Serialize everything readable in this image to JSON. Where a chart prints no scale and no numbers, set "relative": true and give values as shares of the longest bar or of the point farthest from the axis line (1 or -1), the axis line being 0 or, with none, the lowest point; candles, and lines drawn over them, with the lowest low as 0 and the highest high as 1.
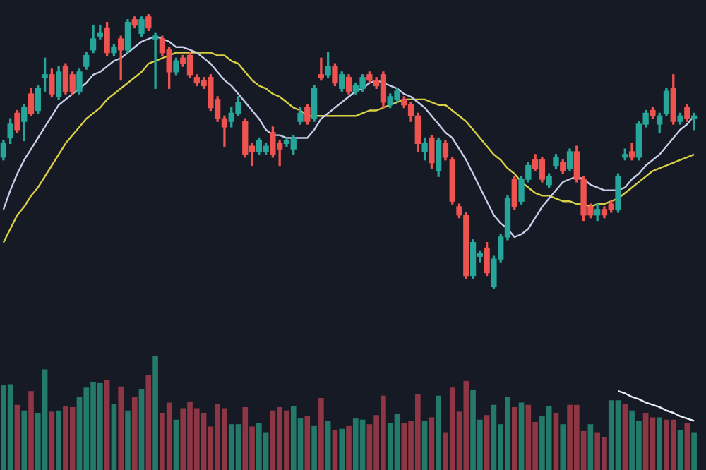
{
  "chart_data": [
    {
      "type": "candlestick",
      "relative": true,
      "tick_labels": false,
      "categories": [
        null,
        null,
        null,
        null,
        null,
        null,
        null,
        null,
        null,
        null,
        null,
        null,
        null,
        null,
        null,
        null,
        null,
        null,
        null,
        null,
        null,
        null,
        null,
        null,
        null,
        null,
        null,
        null,
        null,
        null,
        null,
        null,
        null,
        null,
        null,
        null,
        null,
        null,
        null,
        null,
        null,
        null,
        null,
        null,
        null,
        null,
        null,
        null,
        null,
        null,
        null,
        null,
        null,
        null,
        null,
        null,
        null,
        null,
        null,
        null,
        null,
        null,
        null,
        null,
        null,
        null,
        null,
        null,
        null,
        null,
        null,
        null,
        null,
        null,
        null,
        null,
        null,
        null,
        null,
        null,
        null,
        null,
        null,
        null,
        null,
        null,
        null,
        null,
        null,
        null,
        null,
        null,
        null,
        null,
        null,
        null,
        null,
        null,
        null,
        null,
        null
      ],
      "ohlc": [
        [
          0.48,
          0.54,
          0.47,
          0.53
        ],
        [
          0.55,
          0.62,
          0.53,
          0.6
        ],
        [
          0.64,
          0.65,
          0.57,
          0.58
        ],
        [
          0.61,
          0.67,
          0.54,
          0.66
        ],
        [
          0.71,
          0.73,
          0.63,
          0.64
        ],
        [
          0.65,
          0.74,
          0.64,
          0.73
        ],
        [
          0.77,
          0.84,
          0.72,
          0.78
        ],
        [
          0.78,
          0.8,
          0.7,
          0.71
        ],
        [
          0.7,
          0.81,
          0.69,
          0.79
        ],
        [
          0.81,
          0.82,
          0.71,
          0.72
        ],
        [
          0.78,
          0.79,
          0.71,
          0.72
        ],
        [
          0.72,
          0.8,
          0.71,
          0.79
        ],
        [
          0.81,
          0.86,
          0.8,
          0.85
        ],
        [
          0.87,
          0.96,
          0.86,
          0.91
        ],
        [
          0.92,
          0.96,
          0.91,
          0.93
        ],
        [
          0.95,
          0.97,
          0.85,
          0.86
        ],
        [
          0.86,
          0.89,
          0.85,
          0.88
        ],
        [
          0.91,
          0.92,
          0.76,
          0.87
        ],
        [
          0.87,
          0.98,
          0.86,
          0.97
        ],
        [
          0.98,
          0.99,
          0.95,
          0.96
        ],
        [
          0.93,
          0.99,
          0.92,
          0.98
        ],
        [
          0.99,
          1.0,
          0.94,
          0.95
        ],
        [
          0.91,
          0.93,
          0.73,
          0.92
        ],
        [
          0.91,
          0.92,
          0.85,
          0.86
        ],
        [
          0.87,
          0.88,
          0.73,
          0.79
        ],
        [
          0.79,
          0.84,
          0.78,
          0.83
        ],
        [
          0.84,
          0.85,
          0.81,
          0.82
        ],
        [
          0.85,
          0.86,
          0.77,
          0.78
        ],
        [
          0.77,
          0.78,
          0.74,
          0.75
        ],
        [
          0.76,
          0.77,
          0.73,
          0.74
        ],
        [
          0.77,
          0.78,
          0.65,
          0.66
        ],
        [
          0.69,
          0.7,
          0.61,
          0.62
        ],
        [
          0.62,
          0.63,
          0.52,
          0.59
        ],
        [
          0.61,
          0.66,
          0.59,
          0.64
        ],
        [
          0.64,
          0.7,
          0.63,
          0.68
        ],
        [
          0.61,
          0.62,
          0.48,
          0.49
        ],
        [
          0.52,
          0.53,
          0.45,
          0.5
        ],
        [
          0.5,
          0.55,
          0.49,
          0.54
        ],
        [
          0.5,
          0.53,
          0.49,
          0.52
        ],
        [
          0.57,
          0.59,
          0.48,
          0.49
        ],
        [
          0.53,
          0.54,
          0.45,
          0.51
        ],
        [
          0.53,
          0.55,
          0.52,
          0.54
        ],
        [
          0.51,
          0.56,
          0.49,
          0.55
        ],
        [
          0.61,
          0.66,
          0.6,
          0.64
        ],
        [
          0.66,
          0.67,
          0.6,
          0.61
        ],
        [
          0.62,
          0.74,
          0.61,
          0.73
        ],
        [
          0.78,
          0.84,
          0.76,
          0.77
        ],
        [
          0.78,
          0.86,
          0.77,
          0.81
        ],
        [
          0.81,
          0.82,
          0.74,
          0.75
        ],
        [
          0.73,
          0.79,
          0.72,
          0.78
        ],
        [
          0.77,
          0.78,
          0.71,
          0.72
        ],
        [
          0.72,
          0.75,
          0.71,
          0.74
        ],
        [
          0.73,
          0.78,
          0.72,
          0.77
        ],
        [
          0.78,
          0.79,
          0.75,
          0.76
        ],
        [
          0.76,
          0.77,
          0.73,
          0.74
        ],
        [
          0.78,
          0.79,
          0.66,
          0.68
        ],
        [
          0.67,
          0.71,
          0.66,
          0.7
        ],
        [
          0.69,
          0.73,
          0.68,
          0.72
        ],
        [
          0.69,
          0.7,
          0.66,
          0.67
        ],
        [
          0.67,
          0.68,
          0.61,
          0.63
        ],
        [
          0.63,
          0.64,
          0.5,
          0.53
        ],
        [
          0.5,
          0.55,
          0.47,
          0.53
        ],
        [
          0.55,
          0.56,
          0.44,
          0.46
        ],
        [
          0.43,
          0.55,
          0.41,
          0.54
        ],
        [
          0.53,
          0.54,
          0.47,
          0.48
        ],
        [
          0.47,
          0.48,
          0.31,
          0.32
        ],
        [
          0.3,
          0.31,
          0.26,
          0.27
        ],
        [
          0.27,
          0.28,
          0.04,
          0.05
        ],
        [
          0.05,
          0.18,
          0.04,
          0.17
        ],
        [
          0.12,
          0.14,
          0.1,
          0.13
        ],
        [
          0.15,
          0.17,
          0.05,
          0.06
        ],
        [
          0.01,
          0.12,
          0.0,
          0.11
        ],
        [
          0.11,
          0.2,
          0.1,
          0.19
        ],
        [
          0.19,
          0.34,
          0.18,
          0.33
        ],
        [
          0.4,
          0.41,
          0.29,
          0.3
        ],
        [
          0.32,
          0.41,
          0.31,
          0.4
        ],
        [
          0.4,
          0.46,
          0.39,
          0.45
        ],
        [
          0.47,
          0.49,
          0.43,
          0.44
        ],
        [
          0.47,
          0.48,
          0.39,
          0.4
        ],
        [
          0.38,
          0.42,
          0.37,
          0.41
        ],
        [
          0.45,
          0.49,
          0.44,
          0.48
        ],
        [
          0.46,
          0.47,
          0.42,
          0.43
        ],
        [
          0.44,
          0.51,
          0.43,
          0.5
        ],
        [
          0.5,
          0.52,
          0.39,
          0.4
        ],
        [
          0.4,
          0.41,
          0.25,
          0.27
        ],
        [
          0.3,
          0.31,
          0.26,
          0.27
        ],
        [
          0.27,
          0.31,
          0.25,
          0.29
        ],
        [
          0.29,
          0.3,
          0.26,
          0.27
        ],
        [
          0.31,
          0.32,
          0.28,
          0.29
        ],
        [
          0.29,
          0.42,
          0.28,
          0.41
        ],
        [
          0.48,
          0.51,
          0.47,
          0.49
        ],
        [
          0.5,
          0.53,
          0.47,
          0.48
        ],
        [
          0.48,
          0.61,
          0.47,
          0.6
        ],
        [
          0.6,
          0.65,
          0.59,
          0.64
        ],
        [
          0.65,
          0.66,
          0.62,
          0.63
        ],
        [
          0.6,
          0.64,
          0.57,
          0.63
        ],
        [
          0.64,
          0.73,
          0.63,
          0.72
        ],
        [
          0.73,
          0.78,
          0.6,
          0.61
        ],
        [
          0.61,
          0.64,
          0.6,
          0.63
        ],
        [
          0.66,
          0.67,
          0.61,
          0.62
        ],
        [
          0.62,
          0.64,
          0.58,
          0.63
        ]
      ],
      "colors": [
        "#26a69a",
        "#26a69a",
        "#ef5350",
        "#26a69a",
        "#ef5350",
        "#26a69a",
        "#26a69a",
        "#ef5350",
        "#26a69a",
        "#ef5350",
        "#ef5350",
        "#26a69a",
        "#26a69a",
        "#26a69a",
        "#26a69a",
        "#ef5350",
        "#26a69a",
        "#ef5350",
        "#26a69a",
        "#ef5350",
        "#26a69a",
        "#ef5350",
        "#26a69a",
        "#ef5350",
        "#ef5350",
        "#26a69a",
        "#ef5350",
        "#ef5350",
        "#ef5350",
        "#ef5350",
        "#ef5350",
        "#ef5350",
        "#ef5350",
        "#26a69a",
        "#26a69a",
        "#ef5350",
        "#ef5350",
        "#26a69a",
        "#26a69a",
        "#ef5350",
        "#ef5350",
        "#26a69a",
        "#26a69a",
        "#26a69a",
        "#ef5350",
        "#26a69a",
        "#ef5350",
        "#26a69a",
        "#ef5350",
        "#26a69a",
        "#ef5350",
        "#26a69a",
        "#26a69a",
        "#ef5350",
        "#ef5350",
        "#ef5350",
        "#26a69a",
        "#26a69a",
        "#ef5350",
        "#ef5350",
        "#ef5350",
        "#26a69a",
        "#ef5350",
        "#26a69a",
        "#ef5350",
        "#ef5350",
        "#ef5350",
        "#ef5350",
        "#26a69a",
        "#26a69a",
        "#ef5350",
        "#26a69a",
        "#26a69a",
        "#26a69a",
        "#ef5350",
        "#26a69a",
        "#26a69a",
        "#ef5350",
        "#ef5350",
        "#26a69a",
        "#26a69a",
        "#ef5350",
        "#26a69a",
        "#ef5350",
        "#ef5350",
        "#ef5350",
        "#26a69a",
        "#ef5350",
        "#ef5350",
        "#26a69a",
        "#26a69a",
        "#ef5350",
        "#26a69a",
        "#26a69a",
        "#ef5350",
        "#26a69a",
        "#26a69a",
        "#ef5350",
        "#26a69a",
        "#ef5350",
        "#26a69a"
      ],
      "series": [
        {
          "type": "line",
          "color": "#c5cde8",
          "values": [
            0.29,
            0.36,
            0.42,
            0.47,
            0.51,
            0.55,
            0.59,
            0.63,
            0.67,
            0.69,
            0.71,
            0.73,
            0.75,
            0.78,
            0.79,
            0.81,
            0.83,
            0.84,
            0.86,
            0.88,
            0.9,
            0.91,
            0.92,
            0.91,
            0.9,
            0.88,
            0.88,
            0.87,
            0.86,
            0.84,
            0.82,
            0.79,
            0.76,
            0.74,
            0.71,
            0.68,
            0.65,
            0.62,
            0.58,
            0.56,
            0.56,
            0.55,
            0.55,
            0.55,
            0.55,
            0.58,
            0.62,
            0.64,
            0.66,
            0.68,
            0.7,
            0.72,
            0.73,
            0.75,
            0.76,
            0.75,
            0.74,
            0.73,
            0.71,
            0.7,
            0.68,
            0.66,
            0.63,
            0.6,
            0.57,
            0.55,
            0.51,
            0.47,
            0.42,
            0.37,
            0.32,
            0.27,
            0.24,
            0.22,
            0.19,
            0.2,
            0.22,
            0.26,
            0.3,
            0.33,
            0.36,
            0.39,
            0.4,
            0.41,
            0.4,
            0.38,
            0.37,
            0.36,
            0.36,
            0.36,
            0.37,
            0.4,
            0.42,
            0.45,
            0.47,
            0.49,
            0.52,
            0.55,
            0.58,
            0.6,
            0.63
          ]
        },
        {
          "type": "line",
          "color": "#d9cf45",
          "values": [
            0.17,
            0.22,
            0.27,
            0.3,
            0.34,
            0.37,
            0.41,
            0.45,
            0.49,
            0.53,
            0.56,
            0.59,
            0.62,
            0.64,
            0.66,
            0.69,
            0.71,
            0.73,
            0.75,
            0.77,
            0.79,
            0.82,
            0.83,
            0.84,
            0.85,
            0.86,
            0.86,
            0.86,
            0.86,
            0.86,
            0.86,
            0.85,
            0.85,
            0.83,
            0.82,
            0.79,
            0.76,
            0.74,
            0.73,
            0.71,
            0.7,
            0.68,
            0.66,
            0.65,
            0.63,
            0.63,
            0.63,
            0.63,
            0.63,
            0.63,
            0.63,
            0.63,
            0.64,
            0.65,
            0.65,
            0.66,
            0.67,
            0.68,
            0.69,
            0.69,
            0.69,
            0.69,
            0.68,
            0.67,
            0.67,
            0.65,
            0.63,
            0.61,
            0.58,
            0.55,
            0.52,
            0.49,
            0.47,
            0.44,
            0.42,
            0.39,
            0.37,
            0.35,
            0.34,
            0.34,
            0.33,
            0.32,
            0.32,
            0.31,
            0.31,
            0.3,
            0.31,
            0.31,
            0.32,
            0.33,
            0.35,
            0.37,
            0.39,
            0.41,
            0.43,
            0.44,
            0.45,
            0.46,
            0.47,
            0.48,
            0.49
          ]
        }
      ]
    },
    {
      "type": "bar",
      "relative": true,
      "tick_labels": false,
      "categories": [
        null,
        null,
        null,
        null,
        null,
        null,
        null,
        null,
        null,
        null,
        null,
        null,
        null,
        null,
        null,
        null,
        null,
        null,
        null,
        null,
        null,
        null,
        null,
        null,
        null,
        null,
        null,
        null,
        null,
        null,
        null,
        null,
        null,
        null,
        null,
        null,
        null,
        null,
        null,
        null,
        null,
        null,
        null,
        null,
        null,
        null,
        null,
        null,
        null,
        null,
        null,
        null,
        null,
        null,
        null,
        null,
        null,
        null,
        null,
        null,
        null,
        null,
        null,
        null,
        null,
        null,
        null,
        null,
        null,
        null,
        null,
        null,
        null,
        null,
        null,
        null,
        null,
        null,
        null,
        null,
        null,
        null,
        null,
        null,
        null,
        null,
        null,
        null,
        null,
        null,
        null,
        null,
        null,
        null,
        null,
        null,
        null,
        null,
        null,
        null,
        null
      ],
      "series": [
        {
          "colors": [
            "#237a69",
            "#237a69",
            "#8e3644",
            "#237a69",
            "#8e3644",
            "#237a69",
            "#237a69",
            "#8e3644",
            "#237a69",
            "#8e3644",
            "#8e3644",
            "#237a69",
            "#237a69",
            "#237a69",
            "#237a69",
            "#8e3644",
            "#237a69",
            "#8e3644",
            "#237a69",
            "#8e3644",
            "#237a69",
            "#8e3644",
            "#237a69",
            "#8e3644",
            "#8e3644",
            "#237a69",
            "#8e3644",
            "#8e3644",
            "#8e3644",
            "#8e3644",
            "#8e3644",
            "#8e3644",
            "#8e3644",
            "#237a69",
            "#237a69",
            "#8e3644",
            "#8e3644",
            "#237a69",
            "#237a69",
            "#8e3644",
            "#8e3644",
            "#8e3644",
            "#237a69",
            "#237a69",
            "#8e3644",
            "#237a69",
            "#8e3644",
            "#237a69",
            "#8e3644",
            "#237a69",
            "#8e3644",
            "#237a69",
            "#237a69",
            "#8e3644",
            "#8e3644",
            "#8e3644",
            "#237a69",
            "#237a69",
            "#8e3644",
            "#8e3644",
            "#8e3644",
            "#237a69",
            "#8e3644",
            "#237a69",
            "#8e3644",
            "#8e3644",
            "#8e3644",
            "#8e3644",
            "#237a69",
            "#237a69",
            "#8e3644",
            "#237a69",
            "#237a69",
            "#237a69",
            "#8e3644",
            "#237a69",
            "#8e3644",
            "#8e3644",
            "#237a69",
            "#237a69",
            "#8e3644",
            "#237a69",
            "#8e3644",
            "#8e3644",
            "#8e3644",
            "#237a69",
            "#8e3644",
            "#8e3644",
            "#237a69",
            "#237a69",
            "#8e3644",
            "#237a69",
            "#237a69",
            "#8e3644",
            "#8e3644",
            "#237a69",
            "#8e3644",
            "#8e3644",
            "#237a69",
            "#8e3644",
            "#237a69"
          ],
          "values": [
            0.74,
            0.75,
            0.57,
            0.52,
            0.69,
            0.5,
            0.88,
            0.51,
            0.52,
            0.56,
            0.55,
            0.64,
            0.72,
            0.77,
            0.76,
            0.79,
            0.58,
            0.73,
            0.52,
            0.64,
            0.71,
            0.83,
            1,
            0.5,
            0.59,
            0.44,
            0.54,
            0.6,
            0.54,
            0.5,
            0.38,
            0.58,
            0.54,
            0.4,
            0.4,
            0.55,
            0.38,
            0.41,
            0.33,
            0.52,
            0.55,
            0.52,
            0.56,
            0.45,
            0.47,
            0.39,
            0.63,
            0.43,
            0.35,
            0.36,
            0.39,
            0.45,
            0.44,
            0.4,
            0.48,
            0.65,
            0.41,
            0.49,
            0.41,
            0.43,
            0.66,
            0.43,
            0.46,
            0.65,
            0.33,
            0.72,
            0.51,
            0.78,
            0.7,
            0.44,
            0.48,
            0.57,
            0.4,
            0.64,
            0.55,
            0.59,
            0.57,
            0.42,
            0.47,
            0.56,
            0.5,
            0.4,
            0.57,
            0.57,
            0.34,
            0.4,
            0.33,
            0.29,
            0.61,
            0.61,
            0.58,
            0.52,
            0.43,
            0.5,
            0.46,
            0.46,
            0.44,
            0.44,
            0.35,
            0.41,
            0.33
          ]
        },
        {
          "type": "line",
          "color": "#e8ecf4",
          "values": [
            null,
            null,
            null,
            null,
            null,
            null,
            null,
            null,
            null,
            null,
            null,
            null,
            null,
            null,
            null,
            null,
            null,
            null,
            null,
            null,
            null,
            null,
            null,
            null,
            null,
            null,
            null,
            null,
            null,
            null,
            null,
            null,
            null,
            null,
            null,
            null,
            null,
            null,
            null,
            null,
            null,
            null,
            null,
            null,
            null,
            null,
            null,
            null,
            null,
            null,
            null,
            null,
            null,
            null,
            null,
            null,
            null,
            null,
            null,
            null,
            null,
            null,
            null,
            null,
            null,
            null,
            null,
            null,
            null,
            null,
            null,
            null,
            null,
            null,
            null,
            null,
            null,
            null,
            null,
            null,
            null,
            null,
            null,
            null,
            null,
            null,
            null,
            null,
            null,
            0.69,
            0.67,
            0.64,
            0.62,
            0.59,
            0.57,
            0.55,
            0.52,
            0.5,
            0.47,
            0.45,
            0.43
          ]
        }
      ]
    }
  ]
}
